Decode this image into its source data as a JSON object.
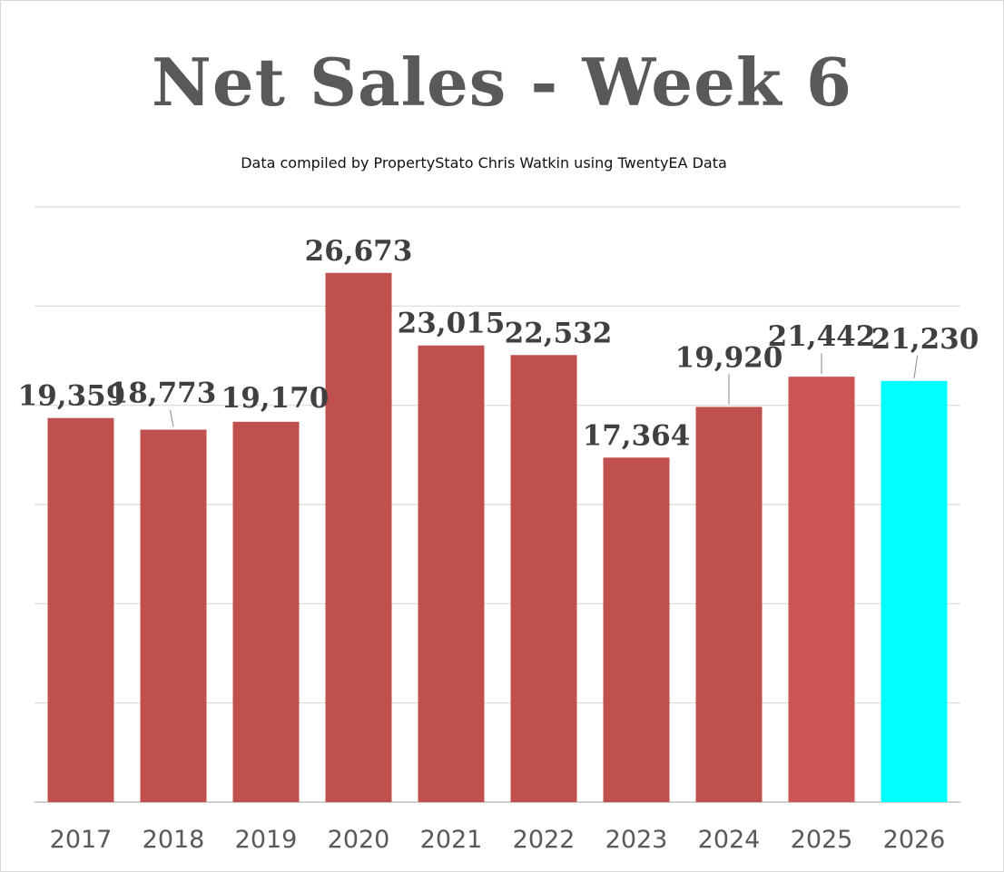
{
  "chart_data": {
    "type": "bar",
    "title": "Net Sales - Week 6",
    "subtitle": "Data compiled by PropertyStato Chris Watkin using TwentyEA Data",
    "xlabel": "",
    "ylabel": "",
    "ylim": [
      0,
      30000
    ],
    "grid": true,
    "legend": "none",
    "categories": [
      "2017",
      "2018",
      "2019",
      "2020",
      "2021",
      "2022",
      "2023",
      "2024",
      "2025",
      "2026"
    ],
    "values": [
      19359,
      18773,
      19170,
      26673,
      23015,
      22532,
      17364,
      19920,
      21442,
      21230
    ],
    "data_labels": [
      "19,359",
      "18,773",
      "19,170",
      "26,673",
      "23,015",
      "22,532",
      "17,364",
      "19,920",
      "21,442",
      "21,230"
    ],
    "colors": [
      "#c0504d",
      "#c0504d",
      "#c0504d",
      "#c0504d",
      "#c0504d",
      "#c0504d",
      "#c0504d",
      "#c0504d",
      "#cd5655",
      "#00ffff"
    ]
  }
}
